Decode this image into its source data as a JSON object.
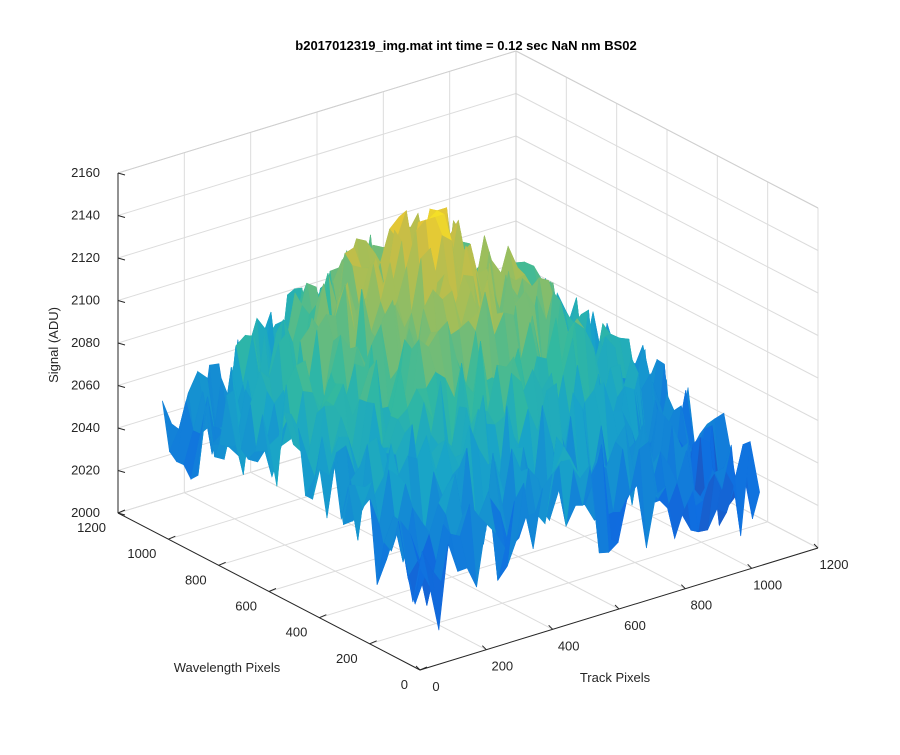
{
  "chart_data": {
    "type": "surface3d",
    "title": "b2017012319_img.mat int time = 0.12 sec  NaN nm BS02",
    "xlabel": "Track Pixels",
    "ylabel": "Wavelength Pixels",
    "zlabel": "Signal (ADU)",
    "xlim": [
      0,
      1200
    ],
    "ylim": [
      0,
      1200
    ],
    "zlim": [
      2000,
      2160
    ],
    "xticks": [
      "0",
      "200",
      "400",
      "600",
      "800",
      "1000",
      "1200"
    ],
    "yticks": [
      "0",
      "200",
      "400",
      "600",
      "800",
      "1000",
      "1200"
    ],
    "zticks": [
      "2000",
      "2020",
      "2040",
      "2060",
      "2080",
      "2100",
      "2120",
      "2140",
      "2160"
    ],
    "data_extent": {
      "x": [
        0,
        1024
      ],
      "y": [
        0,
        1024
      ]
    },
    "z_profile": {
      "center_peak": 2150,
      "edge_low": 2040,
      "noise": 25
    },
    "grid": true,
    "colormap": "parula",
    "view": {
      "azimuth": -37.5,
      "elevation": 30
    }
  }
}
